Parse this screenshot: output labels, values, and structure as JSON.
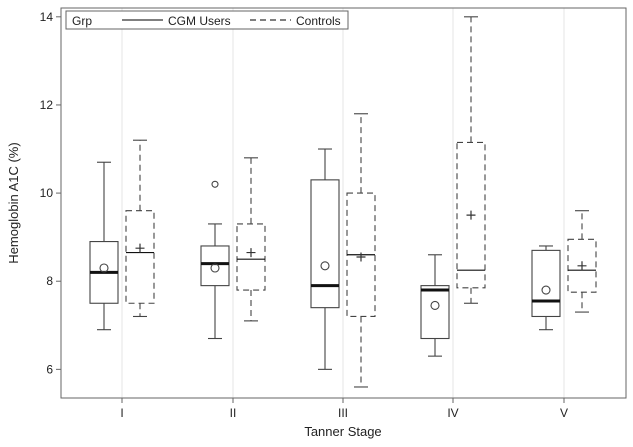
{
  "chart_data": {
    "type": "boxplot",
    "title": "",
    "xlabel": "Tanner Stage",
    "ylabel": "Hemoglobin A1C (%)",
    "ylim": [
      5.35,
      14.2
    ],
    "yticks": [
      "6",
      "8",
      "10",
      "12",
      "14"
    ],
    "categories": [
      "I",
      "II",
      "III",
      "IV",
      "V"
    ],
    "grid": "vertical",
    "legend": {
      "placement": "top-left",
      "group_label": "Grp",
      "entries": [
        "CGM Users",
        "Controls"
      ]
    },
    "series": [
      {
        "name": "CGM Users",
        "line_style": "solid",
        "mean_marker": "circle",
        "boxes": [
          {
            "whisker_low": 6.9,
            "q1": 7.5,
            "median": 8.2,
            "q3": 8.9,
            "whisker_high": 10.7,
            "mean": 8.3,
            "outliers": []
          },
          {
            "whisker_low": 6.7,
            "q1": 7.9,
            "median": 8.4,
            "q3": 8.8,
            "whisker_high": 9.3,
            "mean": 8.3,
            "outliers": [
              10.2
            ]
          },
          {
            "whisker_low": 6.0,
            "q1": 7.4,
            "median": 7.9,
            "q3": 10.3,
            "whisker_high": 11.0,
            "mean": 8.35,
            "outliers": []
          },
          {
            "whisker_low": 6.3,
            "q1": 6.7,
            "median": 7.8,
            "q3": 7.9,
            "whisker_high": 8.6,
            "mean": 7.45,
            "outliers": []
          },
          {
            "whisker_low": 6.9,
            "q1": 7.2,
            "median": 7.55,
            "q3": 8.7,
            "whisker_high": 8.8,
            "mean": 7.8,
            "outliers": []
          }
        ]
      },
      {
        "name": "Controls",
        "line_style": "dashed",
        "mean_marker": "plus",
        "boxes": [
          {
            "whisker_low": 7.2,
            "q1": 7.5,
            "median": 8.65,
            "q3": 9.6,
            "whisker_high": 11.2,
            "mean": 8.75,
            "outliers": []
          },
          {
            "whisker_low": 7.1,
            "q1": 7.8,
            "median": 8.5,
            "q3": 9.3,
            "whisker_high": 10.8,
            "mean": 8.65,
            "outliers": []
          },
          {
            "whisker_low": 5.6,
            "q1": 7.2,
            "median": 8.6,
            "q3": 10.0,
            "whisker_high": 11.8,
            "mean": 8.55,
            "outliers": []
          },
          {
            "whisker_low": 7.5,
            "q1": 7.85,
            "median": 8.25,
            "q3": 11.15,
            "whisker_high": 14.0,
            "mean": 9.5,
            "outliers": []
          },
          {
            "whisker_low": 7.3,
            "q1": 7.75,
            "median": 8.25,
            "q3": 8.95,
            "whisker_high": 9.6,
            "mean": 8.35,
            "outliers": []
          }
        ]
      }
    ]
  }
}
